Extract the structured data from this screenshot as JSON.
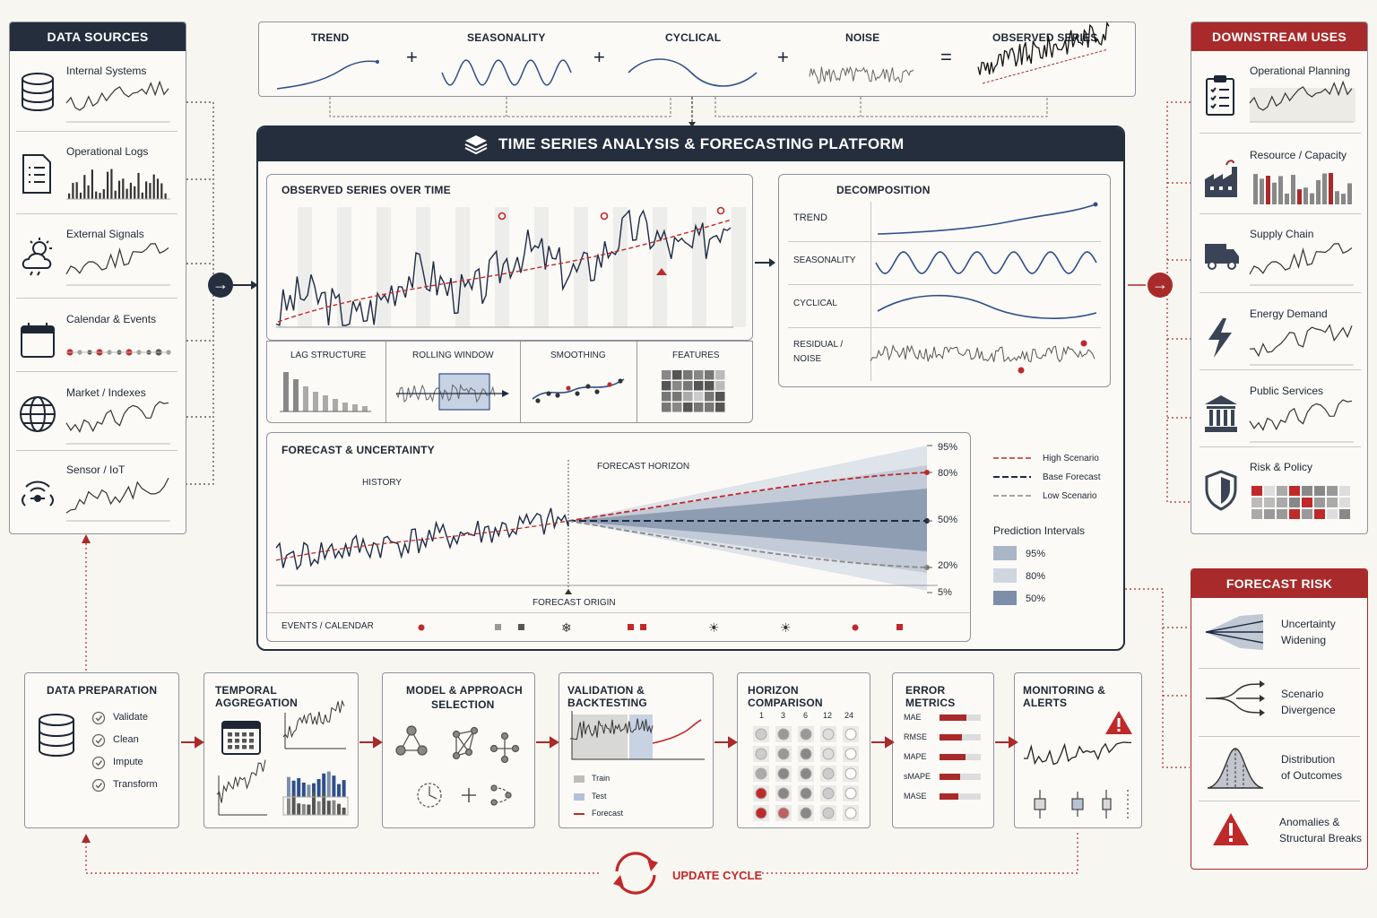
{
  "top_formula": {
    "terms": [
      "TREND",
      "SEASONALITY",
      "CYCLICAL",
      "NOISE",
      "OBSERVED SERIES"
    ],
    "plus": "+",
    "equals": "="
  },
  "data_sources": {
    "title": "DATA SOURCES",
    "items": [
      {
        "label": "Internal Systems",
        "icon": "database-icon"
      },
      {
        "label": "Operational Logs",
        "icon": "document-list-icon"
      },
      {
        "label": "External Signals",
        "icon": "weather-icon"
      },
      {
        "label": "Calendar & Events",
        "icon": "calendar-icon"
      },
      {
        "label": "Market / Indexes",
        "icon": "globe-icon"
      },
      {
        "label": "Sensor / IoT",
        "icon": "sensor-icon"
      }
    ]
  },
  "platform": {
    "title": "TIME SERIES ANALYSIS & FORECASTING PLATFORM",
    "observed": {
      "title": "OBSERVED SERIES OVER TIME"
    },
    "features": [
      "LAG STRUCTURE",
      "ROLLING WINDOW",
      "SMOOTHING",
      "FEATURES"
    ],
    "decomposition": {
      "title": "DECOMPOSITION",
      "rows": [
        "TREND",
        "SEASONALITY",
        "CYCLICAL",
        "RESIDUAL /",
        "NOISE"
      ]
    },
    "forecast": {
      "title": "FORECAST & UNCERTAINTY",
      "history": "HISTORY",
      "horizon": "FORECAST HORIZON",
      "origin": "FORECAST ORIGIN",
      "percentiles": [
        "95%",
        "80%",
        "50%",
        "20%",
        "5%"
      ],
      "events_label": "EVENTS / CALENDAR",
      "legend": [
        "High Scenario",
        "Base Forecast",
        "Low Scenario"
      ],
      "pi_title": "Prediction Intervals",
      "pi_items": [
        "95%",
        "80%",
        "50%"
      ]
    }
  },
  "downstream": {
    "title": "DOWNSTREAM USES",
    "items": [
      {
        "label": "Operational Planning",
        "icon": "clipboard-icon"
      },
      {
        "label": "Resource / Capacity",
        "icon": "factory-icon"
      },
      {
        "label": "Supply Chain",
        "icon": "truck-icon"
      },
      {
        "label": "Energy Demand",
        "icon": "lightning-icon"
      },
      {
        "label": "Public Services",
        "icon": "building-icon"
      },
      {
        "label": "Risk & Policy",
        "icon": "shield-icon"
      }
    ]
  },
  "forecast_risk": {
    "title": "FORECAST RISK",
    "items": [
      [
        "Uncertainty",
        "Widening"
      ],
      [
        "Scenario",
        "Divergence"
      ],
      [
        "Distribution",
        "of Outcomes"
      ],
      [
        "Anomalies &",
        "Structural Breaks"
      ]
    ]
  },
  "pipeline": {
    "prep": {
      "title": "DATA PREPARATION",
      "steps": [
        "Validate",
        "Clean",
        "Impute",
        "Transform"
      ]
    },
    "aggregation": {
      "title": "TEMPORAL AGGREGATION"
    },
    "model": {
      "title_1": "MODEL & APPROACH",
      "title_2": "SELECTION"
    },
    "validation": {
      "title": "VALIDATION & BACKTESTING",
      "legend": [
        "Train",
        "Test",
        "Forecast"
      ]
    },
    "horizon": {
      "title": "HORIZON COMPARISON",
      "cols": [
        "1",
        "3",
        "6",
        "12",
        "24"
      ]
    },
    "errors": {
      "title": "ERROR METRICS",
      "metrics": [
        "MAE",
        "RMSE",
        "MAPE",
        "sMAPE",
        "MASE"
      ]
    },
    "monitoring": {
      "title": "MONITORING & ALERTS"
    }
  },
  "update_cycle": "UPDATE CYCLE",
  "colors": {
    "navy": "#242e3d",
    "red": "#a82a2a",
    "line": "#1e2a44",
    "band": "#7d8ea8"
  }
}
